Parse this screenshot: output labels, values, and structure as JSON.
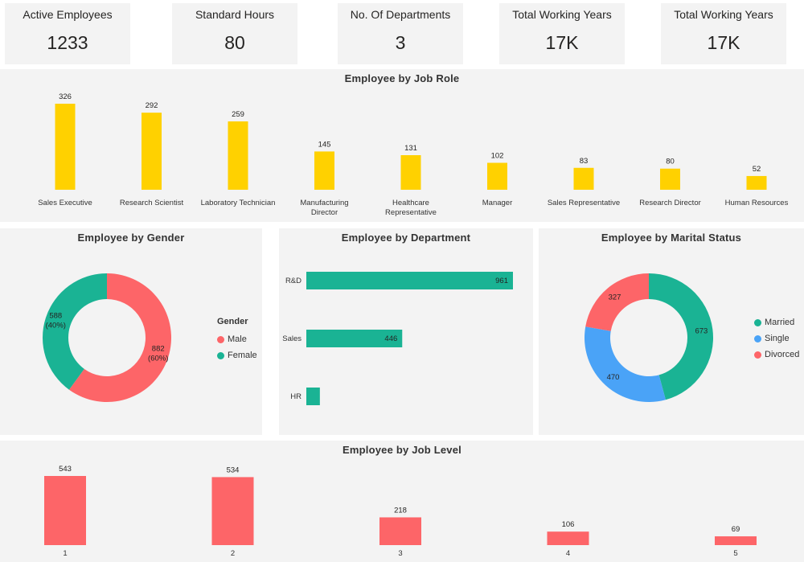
{
  "kpis": [
    {
      "label": "Active Employees",
      "value": "1233"
    },
    {
      "label": "Standard Hours",
      "value": "80"
    },
    {
      "label": "No. Of Departments",
      "value": "3"
    },
    {
      "label": "Total Working Years",
      "value": "17K"
    },
    {
      "label": "Total Working Years",
      "value": "17K"
    }
  ],
  "colors": {
    "job_role": "#ffd100",
    "teal": "#1ab394",
    "red": "#fd6568",
    "blue": "#4aa3f7",
    "panel": "#f3f3f3"
  },
  "legends": {
    "gender": {
      "title": "Gender",
      "items": [
        "Male",
        "Female"
      ]
    },
    "marital": {
      "items": [
        "Married",
        "Single",
        "Divorced"
      ]
    }
  },
  "chart_data": [
    {
      "type": "bar",
      "title": "Employee by Job Role",
      "categories": [
        "Sales Executive",
        "Research Scientist",
        "Laboratory Technician",
        "Manufacturing Director",
        "Healthcare Representative",
        "Manager",
        "Sales Representative",
        "Research Director",
        "Human Resources"
      ],
      "category_lines": [
        [
          "Sales Executive"
        ],
        [
          "Research Scientist"
        ],
        [
          "Laboratory Technician"
        ],
        [
          "Manufacturing",
          "Director"
        ],
        [
          "Healthcare",
          "Representative"
        ],
        [
          "Manager"
        ],
        [
          "Sales Representative"
        ],
        [
          "Research Director"
        ],
        [
          "Human Resources"
        ]
      ],
      "values": [
        326,
        292,
        259,
        145,
        131,
        102,
        83,
        80,
        52
      ]
    },
    {
      "type": "pie",
      "title": "Employee by Gender",
      "categories": [
        "Male",
        "Female"
      ],
      "values": [
        882,
        588
      ],
      "labels": [
        [
          "882",
          "(60%)"
        ],
        [
          "588",
          "(40%)"
        ]
      ]
    },
    {
      "type": "bar",
      "orientation": "horizontal",
      "title": "Employee by Department",
      "categories": [
        "R&D",
        "Sales",
        "HR"
      ],
      "values": [
        961,
        446,
        63
      ],
      "value_labels": [
        "961",
        "446",
        ""
      ]
    },
    {
      "type": "pie",
      "title": "Employee by Marital Status",
      "categories": [
        "Married",
        "Single",
        "Divorced"
      ],
      "values": [
        673,
        470,
        327
      ]
    },
    {
      "type": "bar",
      "title": "Employee by Job Level",
      "categories": [
        "1",
        "2",
        "3",
        "4",
        "5"
      ],
      "values": [
        543,
        534,
        218,
        106,
        69
      ]
    }
  ]
}
